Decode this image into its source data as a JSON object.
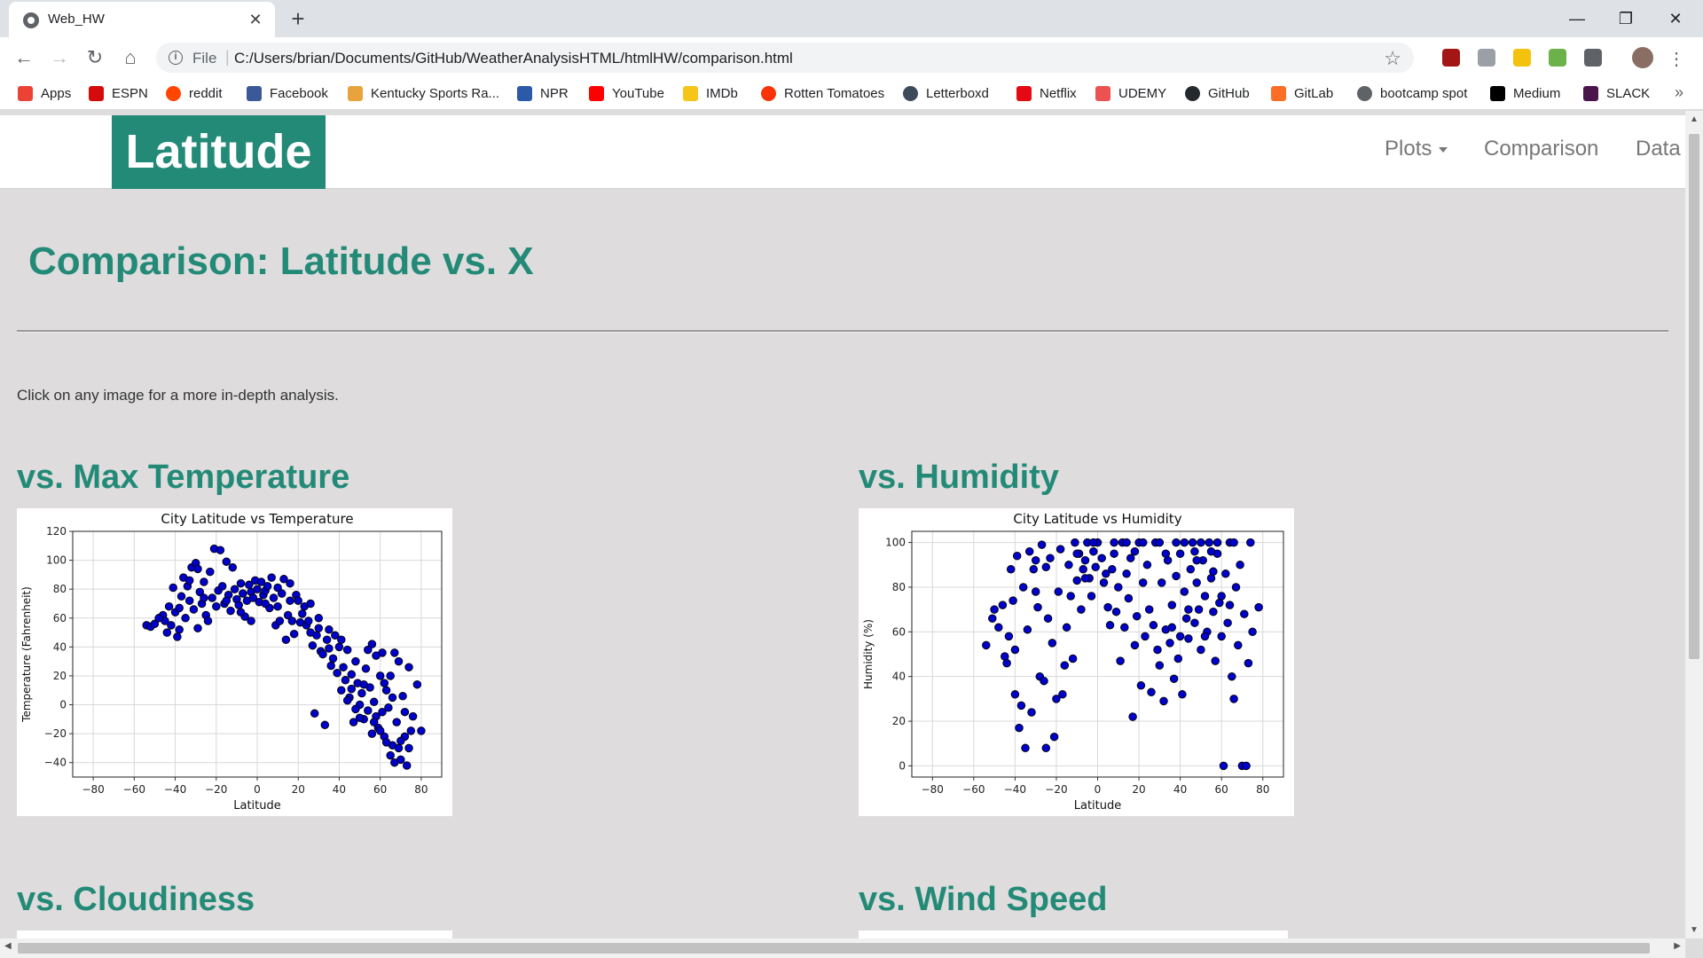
{
  "browser": {
    "tab_title": "Web_HW",
    "tab_close": "✕",
    "new_tab": "+",
    "scheme": "File",
    "url": "C:/Users/brian/Documents/GitHub/WeatherAnalysisHTML/htmlHW/comparison.html",
    "window_controls": {
      "minimize": "—",
      "restore": "❐",
      "close": "✕"
    },
    "extensions": [
      {
        "name": "ublock-icon",
        "color": "#a31616"
      },
      {
        "name": "extension-circle-icon",
        "color": "#9aa0a6"
      },
      {
        "name": "yellow-extension-icon",
        "color": "#f4c20d"
      },
      {
        "name": "cors-extension-icon",
        "color": "#6bb24a"
      },
      {
        "name": "io-extension-icon",
        "color": "#5f6368"
      },
      {
        "name": "profile-avatar-icon",
        "color": "#8a6d63"
      }
    ]
  },
  "bookmarks": [
    {
      "label": "Apps",
      "icon": "apps-grid-icon",
      "color": "#ea4335"
    },
    {
      "label": "ESPN",
      "icon": "espn-icon",
      "color": "#d50a0a"
    },
    {
      "label": "reddit",
      "icon": "reddit-icon",
      "color": "#ff4500"
    },
    {
      "label": "Facebook",
      "icon": "facebook-icon",
      "color": "#3b5998"
    },
    {
      "label": "Kentucky Sports Ra...",
      "icon": "kentucky-sports-icon",
      "color": "#e8a33d"
    },
    {
      "label": "NPR",
      "icon": "npr-icon",
      "color": "#2b5aa8"
    },
    {
      "label": "YouTube",
      "icon": "youtube-icon",
      "color": "#ff0000"
    },
    {
      "label": "IMDb",
      "icon": "imdb-icon",
      "color": "#f5c518"
    },
    {
      "label": "Rotten Tomatoes",
      "icon": "rotten-tomatoes-icon",
      "color": "#fa320a"
    },
    {
      "label": "Letterboxd",
      "icon": "letterboxd-icon",
      "color": "#3d4a5a"
    },
    {
      "label": "Netflix",
      "icon": "netflix-icon",
      "color": "#e50914"
    },
    {
      "label": "UDEMY",
      "icon": "udemy-icon",
      "color": "#ec5252"
    },
    {
      "label": "GitHub",
      "icon": "github-icon",
      "color": "#24292e"
    },
    {
      "label": "GitLab",
      "icon": "gitlab-icon",
      "color": "#fc6d26"
    },
    {
      "label": "bootcamp spot",
      "icon": "globe-icon",
      "color": "#5f6368"
    },
    {
      "label": "Medium",
      "icon": "medium-icon",
      "color": "#000000"
    },
    {
      "label": "SLACK",
      "icon": "slack-icon",
      "color": "#4a154b"
    }
  ],
  "bookmarks_more": "»",
  "site": {
    "brand": "Latitude",
    "nav": {
      "plots": "Plots",
      "comparison": "Comparison",
      "data": "Data"
    },
    "accent_color": "#238a78",
    "page_title": "Comparison: Latitude vs. X",
    "intro": "Click on any image for a more in-depth analysis.",
    "sections": {
      "max_temp": "vs. Max Temperature",
      "humidity": "vs. Humidity",
      "cloudiness": "vs. Cloudiness",
      "wind_speed": "vs. Wind Speed"
    }
  },
  "chart_data": [
    {
      "type": "scatter",
      "title": "City Latitude vs Temperature",
      "xlabel": "Latitude",
      "ylabel": "Temperature (Fahrenheit)",
      "xlim": [
        -90,
        90
      ],
      "ylim": [
        -50,
        120
      ],
      "xticks": [
        "−80",
        "−60",
        "−40",
        "−20",
        "0",
        "20",
        "40",
        "60",
        "80"
      ],
      "yticks": [
        "120",
        "100",
        "80",
        "60",
        "40",
        "20",
        "0",
        "−20",
        "−40"
      ],
      "grid": true,
      "marker_color": "#0000cc",
      "points": [
        [
          -54,
          55
        ],
        [
          -52,
          54
        ],
        [
          -50,
          56
        ],
        [
          -46,
          62
        ],
        [
          -45,
          58
        ],
        [
          -44,
          50
        ],
        [
          -42,
          55
        ],
        [
          -41,
          81
        ],
        [
          -40,
          64
        ],
        [
          -39,
          47
        ],
        [
          -38,
          67
        ],
        [
          -37,
          75
        ],
        [
          -36,
          88
        ],
        [
          -35,
          60
        ],
        [
          -34,
          82
        ],
        [
          -33,
          72
        ],
        [
          -32,
          95
        ],
        [
          -31,
          66
        ],
        [
          -30,
          98
        ],
        [
          -29,
          53
        ],
        [
          -28,
          78
        ],
        [
          -27,
          70
        ],
        [
          -26,
          85
        ],
        [
          -25,
          62
        ],
        [
          -24,
          58
        ],
        [
          -23,
          92
        ],
        [
          -22,
          74
        ],
        [
          -21,
          108
        ],
        [
          -20,
          68
        ],
        [
          -19,
          79
        ],
        [
          -18,
          107
        ],
        [
          -17,
          82
        ],
        [
          -16,
          70
        ],
        [
          -15,
          99
        ],
        [
          -14,
          76
        ],
        [
          -13,
          65
        ],
        [
          -12,
          95
        ],
        [
          -11,
          80
        ],
        [
          -10,
          73
        ],
        [
          -9,
          69
        ],
        [
          -8,
          84
        ],
        [
          -7,
          77
        ],
        [
          -6,
          61
        ],
        [
          -5,
          72
        ],
        [
          -4,
          83
        ],
        [
          -3,
          78
        ],
        [
          -2,
          74
        ],
        [
          -1,
          86
        ],
        [
          0,
          80
        ],
        [
          1,
          71
        ],
        [
          2,
          85
        ],
        [
          3,
          76
        ],
        [
          4,
          79
        ],
        [
          5,
          82
        ],
        [
          6,
          67
        ],
        [
          7,
          88
        ],
        [
          8,
          74
        ],
        [
          9,
          55
        ],
        [
          10,
          81
        ],
        [
          11,
          58
        ],
        [
          12,
          77
        ],
        [
          13,
          87
        ],
        [
          14,
          45
        ],
        [
          15,
          62
        ],
        [
          16,
          84
        ],
        [
          17,
          58
        ],
        [
          18,
          49
        ],
        [
          19,
          76
        ],
        [
          20,
          72
        ],
        [
          21,
          57
        ],
        [
          22,
          63
        ],
        [
          23,
          68
        ],
        [
          24,
          55
        ],
        [
          25,
          58
        ],
        [
          26,
          50
        ],
        [
          27,
          41
        ],
        [
          28,
          -6
        ],
        [
          29,
          48
        ],
        [
          30,
          53
        ],
        [
          31,
          37
        ],
        [
          32,
          35
        ],
        [
          33,
          -14
        ],
        [
          34,
          45
        ],
        [
          35,
          39
        ],
        [
          36,
          27
        ],
        [
          37,
          32
        ],
        [
          38,
          48
        ],
        [
          39,
          22
        ],
        [
          40,
          40
        ],
        [
          41,
          10
        ],
        [
          42,
          26
        ],
        [
          43,
          17
        ],
        [
          44,
          38
        ],
        [
          45,
          5
        ],
        [
          46,
          21
        ],
        [
          47,
          -12
        ],
        [
          48,
          30
        ],
        [
          49,
          15
        ],
        [
          50,
          0
        ],
        [
          51,
          8
        ],
        [
          52,
          -10
        ],
        [
          53,
          25
        ],
        [
          54,
          -4
        ],
        [
          55,
          12
        ],
        [
          56,
          42
        ],
        [
          57,
          2
        ],
        [
          58,
          -8
        ],
        [
          59,
          -16
        ],
        [
          60,
          20
        ],
        [
          61,
          36
        ],
        [
          62,
          -22
        ],
        [
          63,
          10
        ],
        [
          64,
          -2
        ],
        [
          65,
          -35
        ],
        [
          66,
          -28
        ],
        [
          67,
          36
        ],
        [
          68,
          -12
        ],
        [
          69,
          30
        ],
        [
          70,
          -38
        ],
        [
          71,
          6
        ],
        [
          72,
          -22
        ],
        [
          73,
          -42
        ],
        [
          74,
          26
        ],
        [
          75,
          -18
        ],
        [
          76,
          -8
        ],
        [
          78,
          14
        ],
        [
          80,
          -18
        ],
        [
          44,
          3
        ],
        [
          48,
          -3
        ],
        [
          52,
          14
        ],
        [
          57,
          -12
        ],
        [
          60,
          -18
        ],
        [
          63,
          -26
        ],
        [
          66,
          5
        ],
        [
          69,
          -30
        ],
        [
          72,
          -5
        ],
        [
          54,
          38
        ],
        [
          58,
          34
        ],
        [
          62,
          15
        ],
        [
          46,
          11
        ],
        [
          41,
          45
        ],
        [
          35,
          52
        ],
        [
          30,
          60
        ],
        [
          26,
          70
        ],
        [
          -33,
          86
        ],
        [
          -29,
          94
        ],
        [
          -26,
          74
        ],
        [
          -15,
          72
        ],
        [
          -8,
          64
        ],
        [
          -3,
          58
        ],
        [
          4,
          70
        ],
        [
          10,
          68
        ],
        [
          16,
          72
        ],
        [
          -48,
          60
        ],
        [
          -43,
          68
        ],
        [
          -38,
          52
        ],
        [
          65,
          20
        ],
        [
          70,
          -25
        ],
        [
          67,
          -40
        ],
        [
          74,
          -30
        ],
        [
          61,
          -5
        ],
        [
          56,
          -20
        ],
        [
          50,
          -9
        ]
      ]
    },
    {
      "type": "scatter",
      "title": "City Latitude vs Humidity",
      "xlabel": "Latitude",
      "ylabel": "Humidity (%)",
      "xlim": [
        -90,
        90
      ],
      "ylim": [
        -5,
        105
      ],
      "xticks": [
        "−80",
        "−60",
        "−40",
        "−20",
        "0",
        "20",
        "40",
        "60",
        "80"
      ],
      "yticks": [
        "100",
        "80",
        "60",
        "40",
        "20",
        "0"
      ],
      "grid": true,
      "marker_color": "#0000cc",
      "points": [
        [
          -54,
          54
        ],
        [
          -51,
          66
        ],
        [
          -50,
          70
        ],
        [
          -48,
          62
        ],
        [
          -46,
          72
        ],
        [
          -45,
          49
        ],
        [
          -44,
          46
        ],
        [
          -43,
          58
        ],
        [
          -42,
          88
        ],
        [
          -41,
          74
        ],
        [
          -40,
          32
        ],
        [
          -39,
          94
        ],
        [
          -38,
          17
        ],
        [
          -37,
          27
        ],
        [
          -36,
          80
        ],
        [
          -35,
          8
        ],
        [
          -34,
          61
        ],
        [
          -33,
          96
        ],
        [
          -32,
          24
        ],
        [
          -31,
          88
        ],
        [
          -30,
          92
        ],
        [
          -29,
          71
        ],
        [
          -28,
          40
        ],
        [
          -27,
          99
        ],
        [
          -26,
          38
        ],
        [
          -25,
          8
        ],
        [
          -24,
          66
        ],
        [
          -23,
          93
        ],
        [
          -22,
          55
        ],
        [
          -21,
          13
        ],
        [
          -20,
          30
        ],
        [
          -19,
          78
        ],
        [
          -18,
          97
        ],
        [
          -17,
          32
        ],
        [
          -16,
          45
        ],
        [
          -15,
          62
        ],
        [
          -14,
          90
        ],
        [
          -13,
          76
        ],
        [
          -12,
          48
        ],
        [
          -11,
          100
        ],
        [
          -10,
          83
        ],
        [
          -9,
          95
        ],
        [
          -8,
          70
        ],
        [
          -7,
          88
        ],
        [
          -6,
          92
        ],
        [
          -5,
          100
        ],
        [
          -4,
          84
        ],
        [
          -3,
          76
        ],
        [
          -2,
          96
        ],
        [
          -1,
          89
        ],
        [
          0,
          100
        ],
        [
          2,
          93
        ],
        [
          3,
          82
        ],
        [
          5,
          71
        ],
        [
          6,
          63
        ],
        [
          7,
          88
        ],
        [
          8,
          95
        ],
        [
          9,
          69
        ],
        [
          10,
          80
        ],
        [
          11,
          47
        ],
        [
          12,
          100
        ],
        [
          13,
          62
        ],
        [
          14,
          86
        ],
        [
          15,
          75
        ],
        [
          16,
          93
        ],
        [
          17,
          22
        ],
        [
          18,
          54
        ],
        [
          19,
          67
        ],
        [
          20,
          100
        ],
        [
          21,
          36
        ],
        [
          22,
          82
        ],
        [
          23,
          58
        ],
        [
          24,
          90
        ],
        [
          25,
          70
        ],
        [
          26,
          33
        ],
        [
          27,
          63
        ],
        [
          28,
          100
        ],
        [
          29,
          52
        ],
        [
          30,
          45
        ],
        [
          31,
          82
        ],
        [
          32,
          29
        ],
        [
          33,
          61
        ],
        [
          34,
          92
        ],
        [
          35,
          55
        ],
        [
          36,
          72
        ],
        [
          37,
          39
        ],
        [
          38,
          85
        ],
        [
          39,
          48
        ],
        [
          40,
          95
        ],
        [
          41,
          32
        ],
        [
          42,
          78
        ],
        [
          43,
          66
        ],
        [
          44,
          57
        ],
        [
          45,
          88
        ],
        [
          46,
          100
        ],
        [
          47,
          64
        ],
        [
          48,
          82
        ],
        [
          49,
          70
        ],
        [
          50,
          52
        ],
        [
          51,
          92
        ],
        [
          52,
          76
        ],
        [
          53,
          60
        ],
        [
          54,
          100
        ],
        [
          55,
          84
        ],
        [
          56,
          69
        ],
        [
          57,
          47
        ],
        [
          58,
          95
        ],
        [
          59,
          73
        ],
        [
          60,
          58
        ],
        [
          61,
          0
        ],
        [
          62,
          86
        ],
        [
          63,
          64
        ],
        [
          64,
          100
        ],
        [
          65,
          40
        ],
        [
          66,
          30
        ],
        [
          67,
          80
        ],
        [
          68,
          54
        ],
        [
          69,
          90
        ],
        [
          70,
          0
        ],
        [
          71,
          68
        ],
        [
          72,
          0
        ],
        [
          73,
          46
        ],
        [
          74,
          100
        ],
        [
          75,
          60
        ],
        [
          78,
          71
        ],
        [
          44,
          70
        ],
        [
          48,
          92
        ],
        [
          52,
          58
        ],
        [
          56,
          87
        ],
        [
          60,
          76
        ],
        [
          64,
          72
        ],
        [
          36,
          62
        ],
        [
          40,
          58
        ],
        [
          -10,
          95
        ],
        [
          -6,
          84
        ],
        [
          4,
          86
        ],
        [
          -25,
          89
        ],
        [
          -30,
          78
        ],
        [
          -40,
          52
        ],
        [
          22,
          100
        ],
        [
          30,
          100
        ],
        [
          14,
          100
        ],
        [
          -2,
          100
        ],
        [
          8,
          100
        ],
        [
          38,
          100
        ],
        [
          50,
          100
        ],
        [
          58,
          100
        ],
        [
          66,
          100
        ],
        [
          42,
          100
        ],
        [
          55,
          96
        ],
        [
          47,
          96
        ],
        [
          33,
          95
        ],
        [
          18,
          96
        ]
      ]
    }
  ]
}
